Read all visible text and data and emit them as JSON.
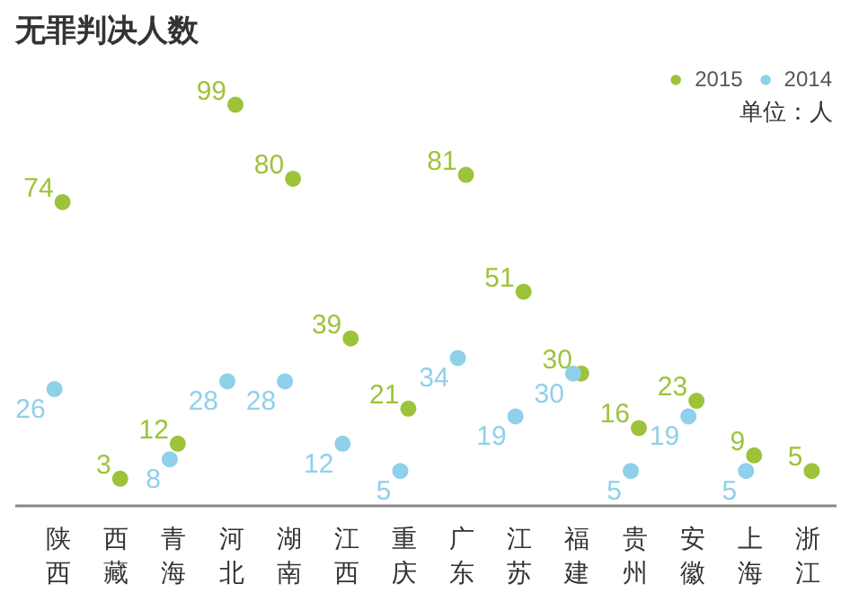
{
  "chart_data": {
    "type": "scatter",
    "title": "无罪判决人数",
    "annotations": [
      "单位：人"
    ],
    "categories": [
      "陕西",
      "西藏",
      "青海",
      "河北",
      "湖南",
      "江西",
      "重庆",
      "广东",
      "江苏",
      "福建",
      "贵州",
      "安徽",
      "上海",
      "浙江"
    ],
    "series": [
      {
        "name": "2015",
        "color": "#9dc33b",
        "values": [
          74,
          3,
          12,
          99,
          80,
          39,
          21,
          81,
          51,
          30,
          16,
          23,
          9,
          5
        ]
      },
      {
        "name": "2014",
        "color": "#8fd0ea",
        "values": [
          26,
          null,
          8,
          28,
          28,
          12,
          5,
          34,
          19,
          30,
          5,
          19,
          5,
          null
        ]
      }
    ],
    "data_labels": true,
    "legend": "top right",
    "marker": "circle"
  }
}
